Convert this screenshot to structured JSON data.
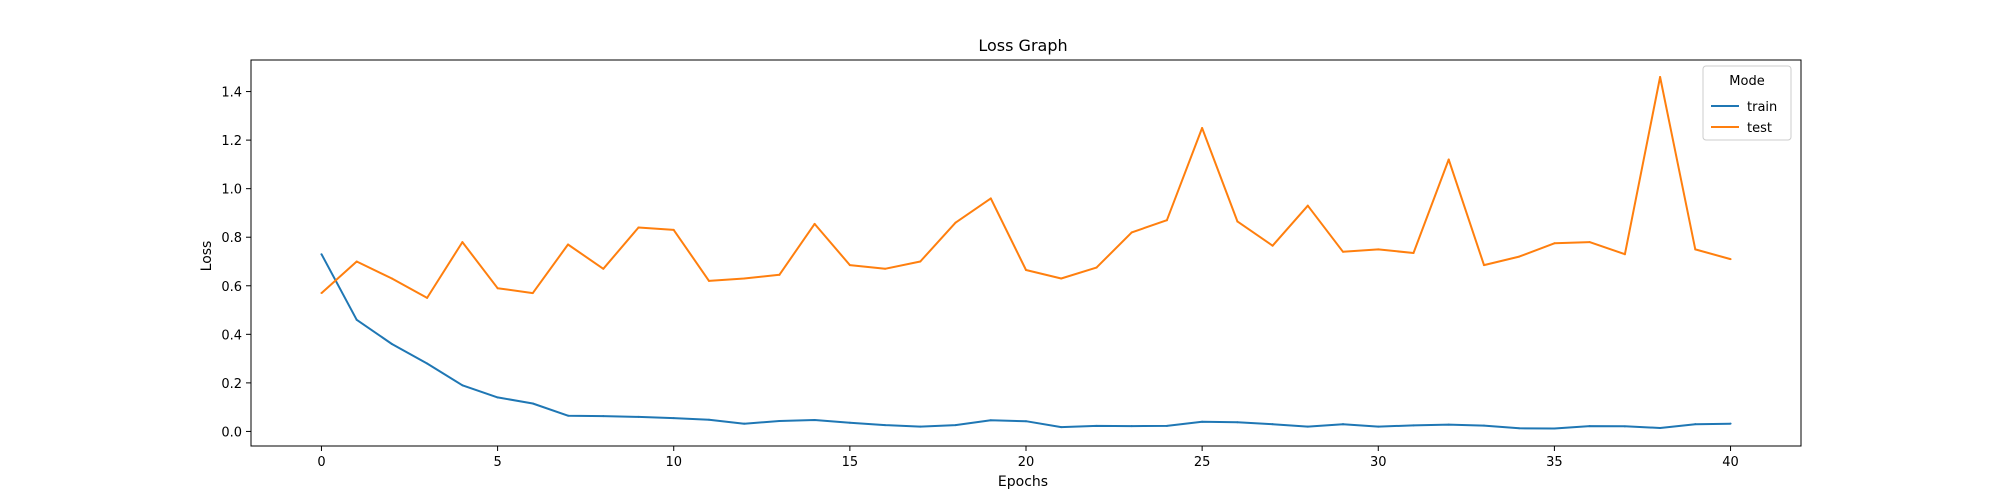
{
  "chart_data": {
    "type": "line",
    "title": "Loss Graph",
    "xlabel": "Epochs",
    "ylabel": "Loss",
    "xlim": [
      -2,
      42
    ],
    "ylim": [
      -0.06,
      1.53
    ],
    "xticks": [
      0,
      5,
      10,
      15,
      20,
      25,
      30,
      35,
      40
    ],
    "yticks": [
      0.0,
      0.2,
      0.4,
      0.6,
      0.8,
      1.0,
      1.2,
      1.4
    ],
    "ytick_labels": [
      "0.0",
      "0.2",
      "0.4",
      "0.6",
      "0.8",
      "1.0",
      "1.2",
      "1.4"
    ],
    "grid": false,
    "legend": {
      "title": "Mode",
      "placement": "top-right"
    },
    "x": [
      0,
      1,
      2,
      3,
      4,
      5,
      6,
      7,
      8,
      9,
      10,
      11,
      12,
      13,
      14,
      15,
      16,
      17,
      18,
      19,
      20,
      21,
      22,
      23,
      24,
      25,
      26,
      27,
      28,
      29,
      30,
      31,
      32,
      33,
      34,
      35,
      36,
      37,
      38,
      39,
      40
    ],
    "series": [
      {
        "name": "train",
        "color": "#1f77b4",
        "values": [
          0.73,
          0.46,
          0.36,
          0.28,
          0.19,
          0.14,
          0.115,
          0.065,
          0.063,
          0.06,
          0.055,
          0.048,
          0.032,
          0.043,
          0.047,
          0.036,
          0.026,
          0.02,
          0.026,
          0.046,
          0.042,
          0.018,
          0.023,
          0.022,
          0.023,
          0.04,
          0.038,
          0.03,
          0.02,
          0.03,
          0.02,
          0.025,
          0.028,
          0.024,
          0.013,
          0.012,
          0.022,
          0.021,
          0.014,
          0.03,
          0.032
        ]
      },
      {
        "name": "test",
        "color": "#ff7f0e",
        "values": [
          0.57,
          0.7,
          0.63,
          0.55,
          0.78,
          0.59,
          0.57,
          0.77,
          0.67,
          0.84,
          0.83,
          0.62,
          0.63,
          0.645,
          0.855,
          0.685,
          0.67,
          0.7,
          0.86,
          0.96,
          0.665,
          0.63,
          0.675,
          0.82,
          0.87,
          1.25,
          0.865,
          0.765,
          0.93,
          0.74,
          0.75,
          0.735,
          1.12,
          0.685,
          0.72,
          0.775,
          0.78,
          0.73,
          1.46,
          0.75,
          0.71
        ]
      }
    ]
  }
}
